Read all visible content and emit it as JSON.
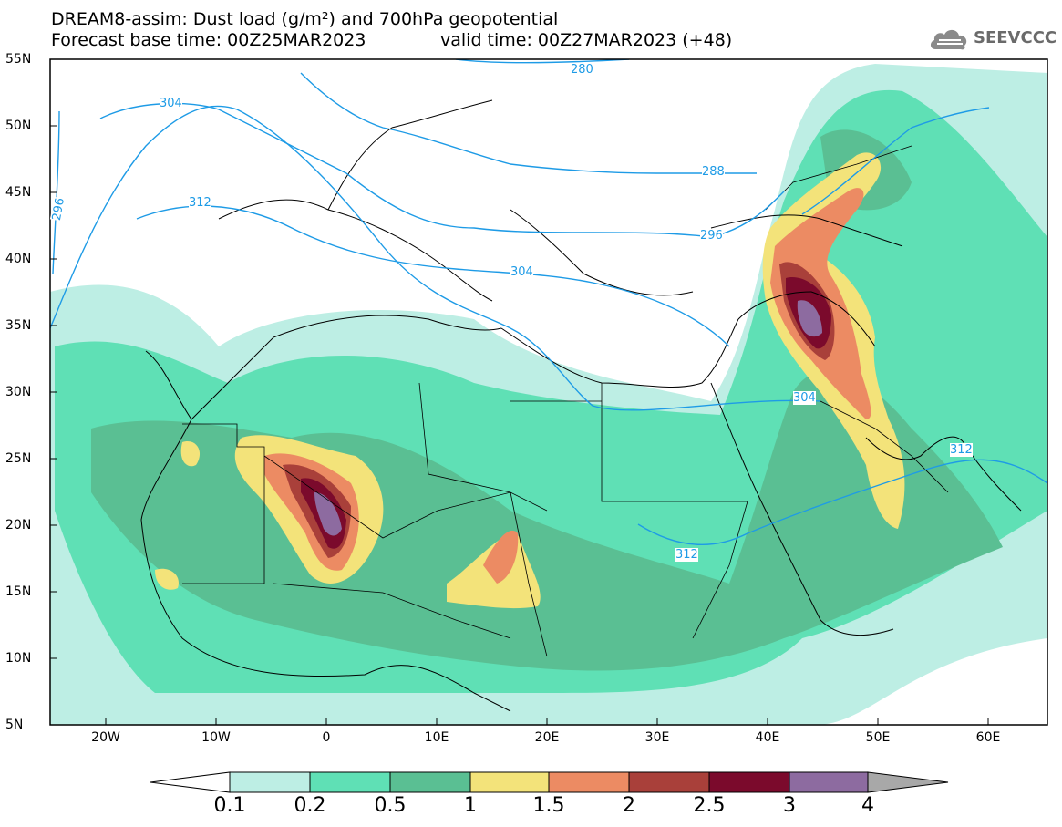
{
  "header": {
    "title_line1": "DREAM8-assim: Dust load (g/m²) and 700hPa geopotential",
    "title_line2": "Forecast base time: 00Z25MAR2023",
    "valid_time": "valid time: 00Z27MAR2023 (+48)",
    "logo_text": "SEEVCCC"
  },
  "map": {
    "lat_labels": [
      "55N",
      "50N",
      "45N",
      "40N",
      "35N",
      "30N",
      "25N",
      "20N",
      "15N",
      "10N",
      "5N"
    ],
    "lon_labels": [
      "20W",
      "10W",
      "0",
      "10E",
      "20E",
      "30E",
      "40E",
      "50E",
      "60E"
    ],
    "contour_labels": [
      "280",
      "288",
      "296",
      "296",
      "304",
      "304",
      "304",
      "312",
      "312",
      "312"
    ]
  },
  "colorbar": {
    "levels": [
      "0.1",
      "0.2",
      "0.5",
      "1",
      "1.5",
      "2",
      "2.5",
      "3",
      "4"
    ],
    "colors": [
      "#ffffff",
      "#bdeee4",
      "#5fe0b5",
      "#5abf93",
      "#f3e37a",
      "#ec8b63",
      "#a9403a",
      "#7b0a2c",
      "#8d6ba0",
      "#a8a8a8"
    ]
  }
}
